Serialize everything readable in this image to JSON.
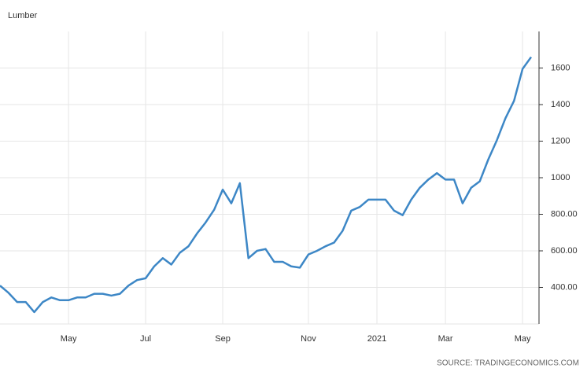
{
  "chart_data": {
    "type": "line",
    "title": "Lumber",
    "source": "SOURCE: TRADINGECONOMICS.COM",
    "categories": [
      null,
      null,
      null,
      null,
      null,
      null,
      null,
      null,
      "May",
      null,
      null,
      null,
      null,
      null,
      null,
      null,
      null,
      "Jul",
      null,
      null,
      null,
      null,
      null,
      null,
      null,
      null,
      "Sep",
      null,
      null,
      null,
      null,
      null,
      null,
      null,
      null,
      null,
      "Nov",
      null,
      null,
      null,
      null,
      null,
      null,
      null,
      "2021",
      null,
      null,
      null,
      null,
      null,
      null,
      null,
      "Mar",
      null,
      null,
      null,
      null,
      null,
      null,
      null,
      null,
      "May",
      null
    ],
    "series": [
      {
        "name": "Lumber",
        "color": "#3d87c6",
        "values": [
          410,
          370,
          320,
          320,
          265,
          320,
          345,
          330,
          330,
          345,
          345,
          365,
          365,
          355,
          365,
          410,
          440,
          450,
          515,
          560,
          525,
          590,
          625,
          695,
          755,
          825,
          935,
          860,
          970,
          560,
          600,
          610,
          540,
          540,
          515,
          508,
          580,
          600,
          625,
          645,
          710,
          820,
          840,
          880,
          880,
          880,
          820,
          795,
          880,
          945,
          990,
          1025,
          990,
          990,
          860,
          945,
          980,
          1100,
          1205,
          1325,
          1420,
          1595,
          1660
        ]
      }
    ],
    "ylim": [
      200,
      1800
    ],
    "yticks": [
      {
        "value": 400,
        "label": "400.00"
      },
      {
        "value": 600,
        "label": "600.00"
      },
      {
        "value": 800,
        "label": "800.00"
      },
      1000,
      1200,
      1400,
      1600
    ],
    "grid": true
  }
}
